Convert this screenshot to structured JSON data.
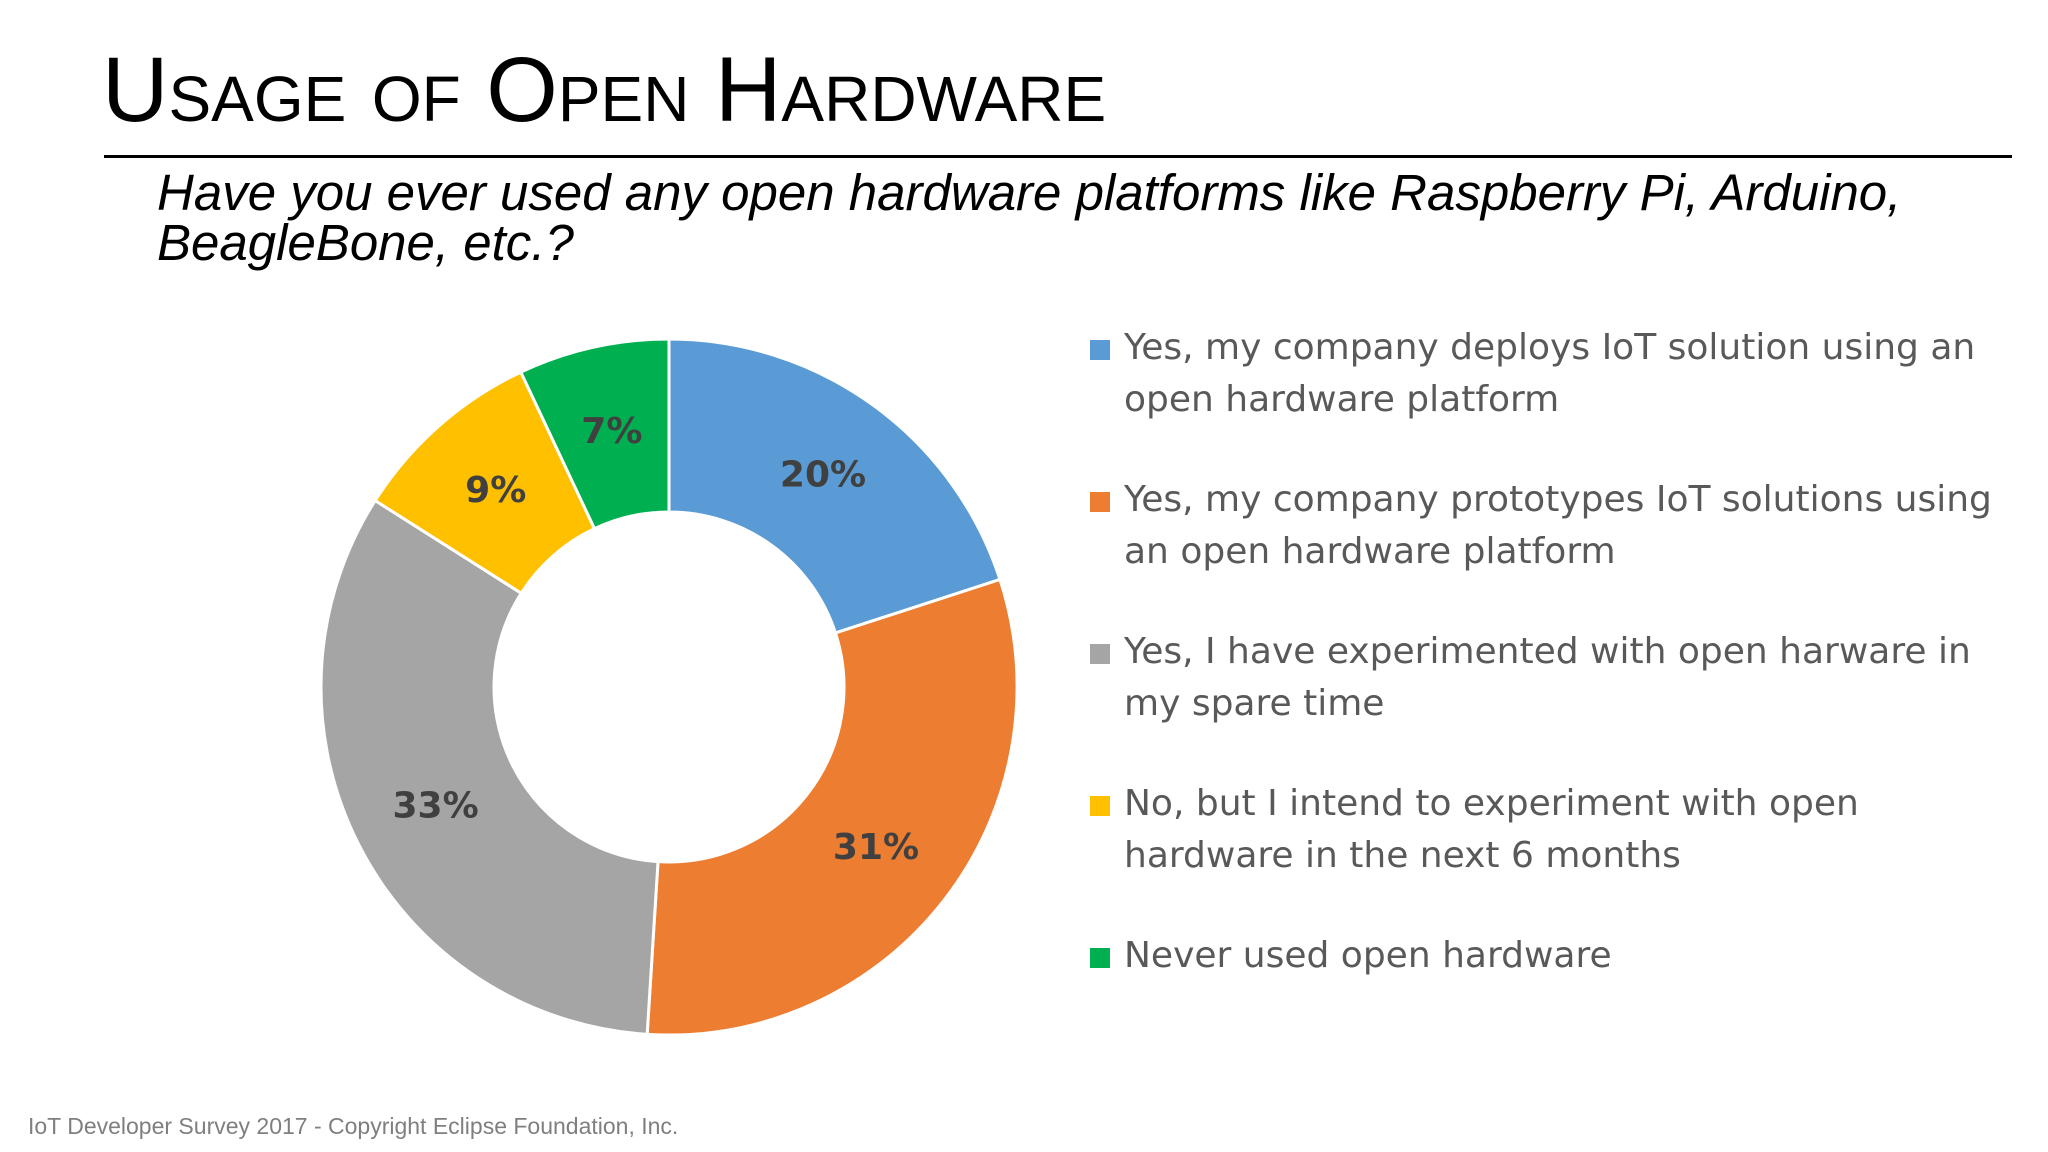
{
  "slide": {
    "title": "Usage of Open Hardware",
    "question": "Have you ever used any open hardware platforms like Raspberry Pi, Arduino, BeagleBone, etc.?",
    "footer": "IoT Developer Survey 2017 - Copyright Eclipse Foundation, Inc."
  },
  "chart_data": {
    "type": "pie",
    "style": "donut",
    "legend_position": "right",
    "slices": [
      {
        "label": "Yes, my company deploys IoT solution using an open hardware platform",
        "value": 20,
        "display": "20%",
        "color": "#5B9BD5"
      },
      {
        "label": "Yes, my company prototypes IoT solutions using an open hardware platform",
        "value": 31,
        "display": "31%",
        "color": "#ED7D31"
      },
      {
        "label": "Yes, I have experimented with open harware in my spare time",
        "value": 33,
        "display": "33%",
        "color": "#A5A5A5"
      },
      {
        "label": "No, but I intend to experiment with open hardware in the next 6 months",
        "value": 9,
        "display": "9%",
        "color": "#FFC000"
      },
      {
        "label": "Never used open hardware",
        "value": 7,
        "display": "7%",
        "color": "#00B050"
      }
    ]
  }
}
